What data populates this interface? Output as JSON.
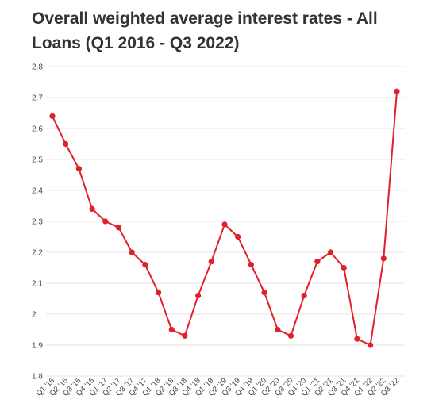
{
  "chart_data": {
    "type": "line",
    "title": "Overall weighted average interest rates - All Loans (Q1 2016 - Q3 2022)",
    "xlabel": "",
    "ylabel": "",
    "ylim": [
      1.8,
      2.8
    ],
    "yticks": [
      "1.8",
      "1.9",
      "2",
      "2.1",
      "2.2",
      "2.3",
      "2.4",
      "2.5",
      "2.6",
      "2.7",
      "2.8"
    ],
    "grid": true,
    "legend": "none",
    "colors": {
      "line": "#e0202a",
      "grid": "#e4e4e4"
    },
    "categories": [
      "Q1 '16",
      "Q2 '16",
      "Q3 '16",
      "Q4 '16",
      "Q1 '17",
      "Q2 '17",
      "Q3 '17",
      "Q4 '17",
      "Q1 '18",
      "Q2 '18",
      "Q3 '18",
      "Q4 '18",
      "Q1 '19",
      "Q2 '19",
      "Q3 '19",
      "Q4 '19",
      "Q1 '20",
      "Q2 '20",
      "Q3 '20",
      "Q4 '20",
      "Q1 '21",
      "Q2 '21",
      "Q3 '21",
      "Q4 '21",
      "Q1 '22",
      "Q2 '22",
      "Q3 '22"
    ],
    "values": [
      2.64,
      2.55,
      2.47,
      2.34,
      2.3,
      2.28,
      2.2,
      2.16,
      2.07,
      1.95,
      1.93,
      2.06,
      2.17,
      2.29,
      2.25,
      2.16,
      2.07,
      1.95,
      1.93,
      2.06,
      2.17,
      2.2,
      2.15,
      1.92,
      1.9,
      2.18,
      2.72
    ]
  }
}
